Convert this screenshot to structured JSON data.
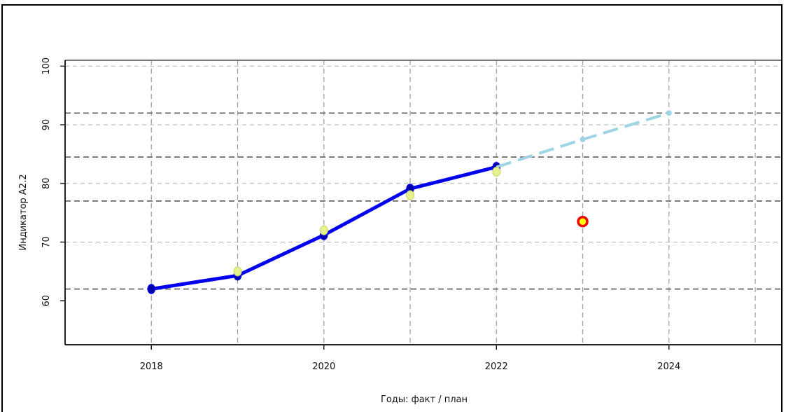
{
  "chart_data": {
    "type": "line",
    "title": "",
    "xlabel": "Годы: факт / план",
    "ylabel": "Индикатор А2.2",
    "xlim": [
      2017,
      2025.3
    ],
    "ylim": [
      52.5,
      101
    ],
    "x_ticks": [
      2018,
      2020,
      2022,
      2024
    ],
    "y_ticks": [
      60,
      70,
      80,
      90,
      100
    ],
    "x_grid": [
      2017,
      2018,
      2019,
      2020,
      2021,
      2022,
      2023,
      2024,
      2025
    ],
    "y_grid_light": [
      70,
      80,
      90,
      100
    ],
    "reference_lines": [
      62,
      77,
      84.5,
      92
    ],
    "grid": true,
    "series": [
      {
        "style": "solid",
        "color": "#0000ee",
        "marker_color": "#0000aa",
        "x": [
          2018,
          2019,
          2020,
          2021,
          2022
        ],
        "y": [
          62,
          64.3,
          71.2,
          79.1,
          82.8
        ]
      },
      {
        "style": "dashed",
        "color": "#9fd4e6",
        "x": [
          2022,
          2023,
          2024
        ],
        "y": [
          82.8,
          87.5,
          92
        ]
      },
      {
        "style": "markers",
        "color": "#e6f08c",
        "x": [
          2019,
          2020,
          2021,
          2022
        ],
        "y": [
          65,
          72,
          78,
          82
        ]
      },
      {
        "style": "marker",
        "color": "#ffff00",
        "edge_color": "#ee0000",
        "x": [
          2023
        ],
        "y": [
          73.5
        ]
      }
    ]
  }
}
